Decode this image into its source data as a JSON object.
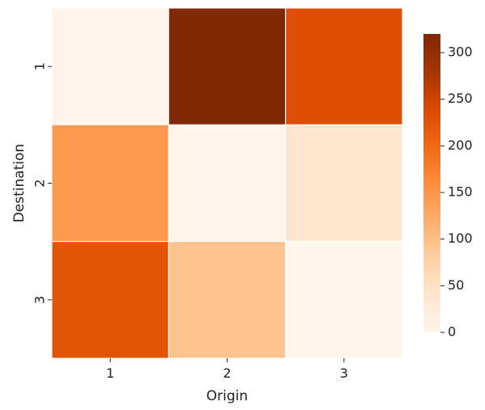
{
  "chart_data": {
    "type": "heatmap",
    "title": "",
    "xlabel": "Origin",
    "ylabel": "Destination",
    "x_categories": [
      "1",
      "2",
      "3"
    ],
    "y_categories": [
      "1",
      "2",
      "3"
    ],
    "values": [
      [
        0,
        318,
        230
      ],
      [
        145,
        0,
        40
      ],
      [
        225,
        95,
        0
      ]
    ],
    "colormap": "Oranges",
    "colorbar": {
      "range": [
        0,
        320
      ],
      "ticks": [
        0,
        50,
        100,
        150,
        200,
        250,
        300
      ]
    },
    "grid": false,
    "legend": "right"
  }
}
